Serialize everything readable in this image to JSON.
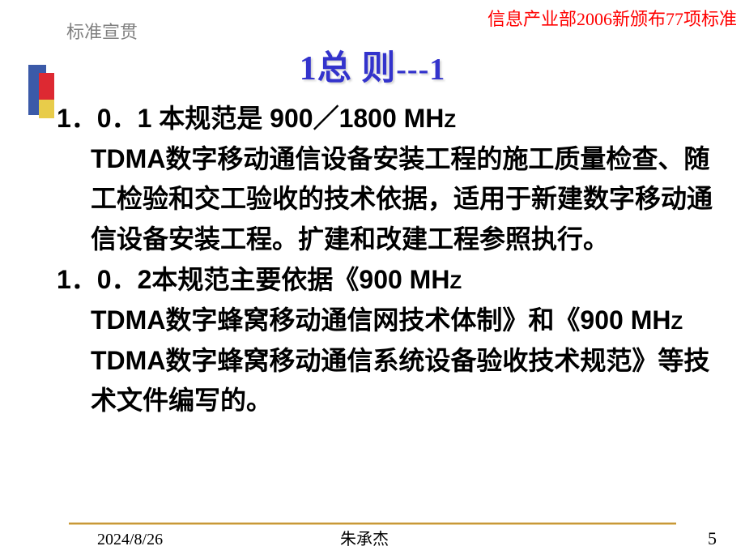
{
  "header": {
    "left": "标准宣贯",
    "right": "信息产业部2006新颁布77项标准"
  },
  "title": {
    "main": "1总 则",
    "suffix": "---1"
  },
  "content": {
    "para1": {
      "line1_prefix": "1．0．1 本规范是 900／1800 MH",
      "line1_z": "Z",
      "rest_a": "TDMA数字移动通信设备安装工程的施工质量检查、随工检验和交工验收的技术依据，适用于新建数字移动通信设备安装工程。扩建和改建工程参照执行。"
    },
    "para2": {
      "line1_prefix": "1．0．2本规范主要依据《900 MH",
      "line1_z": "Z",
      "rest_a": "TDMA数字蜂窝移动通信网技术体制》和《900 MH",
      "rest_z": "Z",
      "rest_b": " TDMA数字蜂窝移动通信系统设备验收技术规范》等技术文件编写的。"
    }
  },
  "footer": {
    "date": "2024/8/26",
    "author": "朱承杰",
    "page": "5"
  },
  "colors": {
    "title_color": "#3333cc",
    "header_right_color": "#ff0000",
    "header_left_color": "#808080",
    "deco_blue": "#3b5aa8",
    "deco_red": "#dd2932",
    "deco_yellow": "#e8cc4a",
    "footer_line": "#c89838"
  },
  "typography": {
    "title_fontsize": 42,
    "body_fontsize": 32,
    "header_fontsize": 22,
    "footer_fontsize": 20
  }
}
